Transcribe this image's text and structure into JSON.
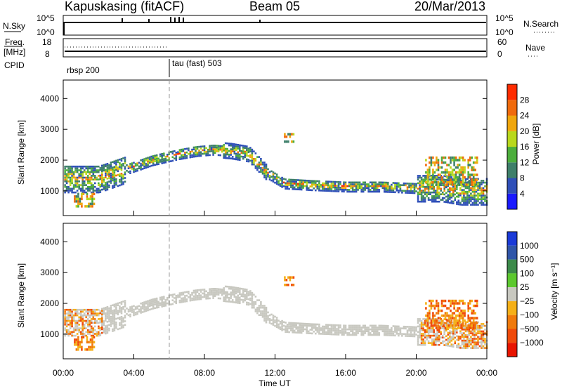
{
  "header": {
    "station": "Kapuskasing (fitACF)",
    "beam": "Beam 05",
    "date": "20/Mar/2013"
  },
  "strips": {
    "nsky": {
      "label": "N.Sky",
      "ticks": [
        "10^5",
        "10^0"
      ]
    },
    "nsearch": {
      "label": "N.Search",
      "ticks": [
        "10^5",
        "10^0"
      ]
    },
    "freq": {
      "label_top": "Freq.",
      "label_unit": "[MHz]",
      "ticks": [
        "18",
        "8"
      ]
    },
    "nave": {
      "label": "Nave",
      "ticks": [
        "60",
        "0"
      ]
    },
    "cpid": {
      "label": "CPID",
      "segments": [
        {
          "name": "rbsp 200",
          "start": 0.0
        },
        {
          "name": "tau (fast) 503",
          "start": 6.0
        }
      ]
    }
  },
  "chart_data": [
    {
      "type": "heatmap",
      "name": "power",
      "ylabel": "Slant Range [km]",
      "y_ticks": [
        "1000",
        "2000",
        "3000",
        "4000"
      ],
      "ylim": [
        200,
        4600
      ],
      "colorbar": {
        "label": "Power [dB]",
        "ticks": [
          "4",
          "8",
          "12",
          "16",
          "20",
          "24",
          "28"
        ],
        "range": [
          0,
          32
        ],
        "colors": [
          "#1a1aff",
          "#2f4fb8",
          "#3e7f6a",
          "#4cae3c",
          "#b9d81c",
          "#f0a60c",
          "#f06a0c",
          "#ff2b00"
        ]
      },
      "bands": [
        {
          "x": [
            0.0,
            2.0,
            3.5,
            5.0,
            6.5,
            7.5,
            8.5,
            9.5,
            10.5,
            11.5,
            12.5,
            14.0,
            16.0,
            18.0,
            20.0,
            21.5,
            22.5,
            24.0
          ],
          "y": [
            1400,
            1400,
            1700,
            2000,
            2200,
            2300,
            2350,
            2300,
            2200,
            1600,
            1250,
            1200,
            1150,
            1150,
            1100,
            1100,
            1000,
            1000
          ]
        }
      ],
      "features": [
        {
          "label": "near-range echoes",
          "x": [
            0.6,
            1.8
          ],
          "y": [
            500,
            900
          ]
        },
        {
          "label": "isolated echoes",
          "x": [
            12.5,
            13.0
          ],
          "y": [
            2600,
            2900
          ]
        },
        {
          "label": "late echoes",
          "x": [
            20.5,
            23.5
          ],
          "y": [
            1200,
            2100
          ]
        }
      ]
    },
    {
      "type": "heatmap",
      "name": "velocity",
      "ylabel": "Slant Range [km]",
      "y_ticks": [
        "1000",
        "2000",
        "3000",
        "4000"
      ],
      "ylim": [
        200,
        4600
      ],
      "xlabel": "Time UT",
      "x_ticks": [
        "00:00",
        "04:00",
        "08:00",
        "12:00",
        "16:00",
        "20:00",
        "00:00"
      ],
      "xlim": [
        0,
        24
      ],
      "colorbar": {
        "label": "Velocity [m s⁻¹]",
        "ticks": [
          "1000",
          "500",
          "100",
          "25",
          "−25",
          "−100",
          "−500",
          "−1000"
        ],
        "colors": [
          "#1a3ad8",
          "#2f55a8",
          "#3c8a4a",
          "#5cc82e",
          "#c8c8c0",
          "#f5b018",
          "#f07a0c",
          "#f04a0a",
          "#e81400"
        ]
      },
      "ground_scatter_color": "#c8c8c0"
    }
  ]
}
